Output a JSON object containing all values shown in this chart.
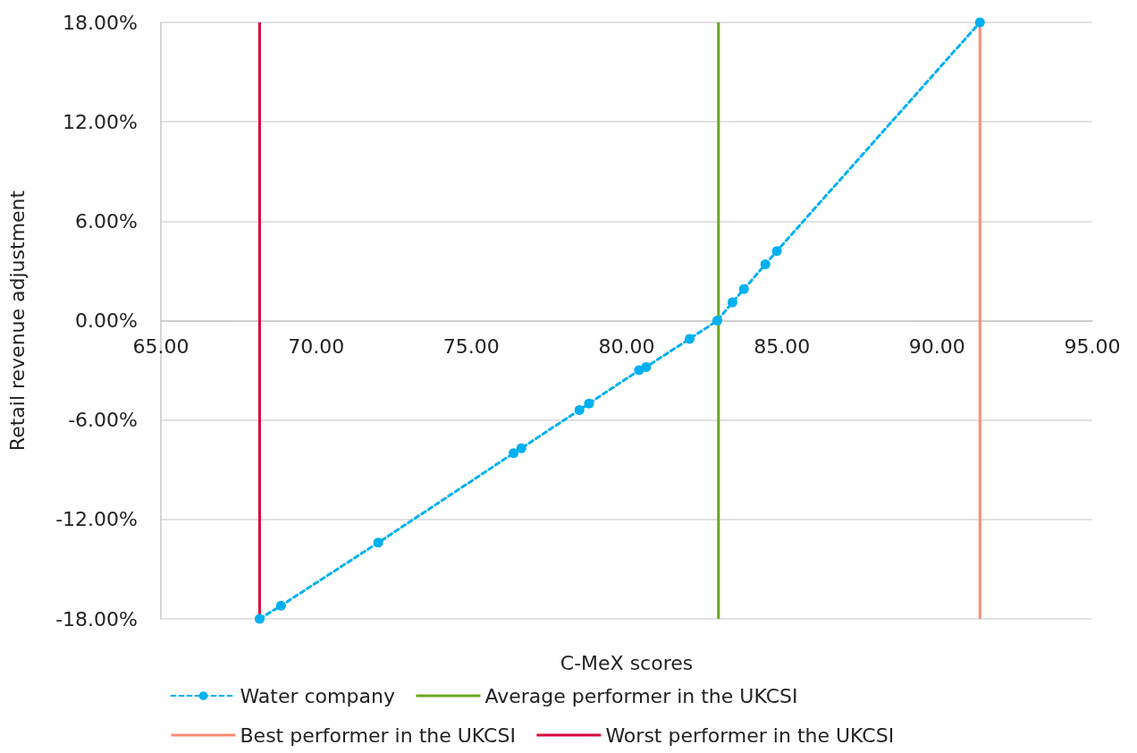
{
  "chart_data": {
    "type": "line",
    "xlabel": "C-MeX scores",
    "ylabel": "Retail revenue adjustment",
    "xlim": [
      65,
      95
    ],
    "xticks": [
      {
        "value": 65,
        "label": "65.00"
      },
      {
        "value": 70,
        "label": "70.00"
      },
      {
        "value": 75,
        "label": "75.00"
      },
      {
        "value": 80,
        "label": "80.00"
      },
      {
        "value": 85,
        "label": "85.00"
      },
      {
        "value": 90,
        "label": "90.00"
      },
      {
        "value": 95,
        "label": "95.00"
      }
    ],
    "ylim": [
      -18,
      18
    ],
    "yticks": [
      {
        "value": -18,
        "label": "-18.00%"
      },
      {
        "value": -12,
        "label": "-12.00%"
      },
      {
        "value": -6,
        "label": "-6.00%"
      },
      {
        "value": 0,
        "label": "0.00%"
      },
      {
        "value": 6,
        "label": "6.00%"
      },
      {
        "value": 12,
        "label": "12.00%"
      },
      {
        "value": 18,
        "label": "18.00%"
      }
    ],
    "grid": "y",
    "legend": "bottom",
    "marker": "circle",
    "line_style": "dashed",
    "series": [
      {
        "name": "Water company",
        "color": "#00b0f0",
        "x": [
          68.18,
          68.87,
          72.0,
          76.36,
          76.61,
          78.48,
          78.79,
          80.4,
          80.63,
          82.03,
          82.92,
          83.41,
          83.78,
          84.47,
          84.84,
          91.38
        ],
        "values": [
          -18,
          -17.2,
          -13.4,
          -8.0,
          -7.7,
          -5.4,
          -5.0,
          -3.0,
          -2.8,
          -1.1,
          0.0,
          1.1,
          1.9,
          3.4,
          4.2,
          18
        ]
      }
    ],
    "ref_lines": [
      {
        "axis": "x",
        "value": 82.96,
        "label": "Average performer in the UKCSI",
        "color": "#6aa61e"
      },
      {
        "axis": "x",
        "value": 91.38,
        "label": "Best performer in the UKCSI",
        "color": "#ff8b73"
      },
      {
        "axis": "x",
        "value": 68.18,
        "label": "Worst performer in the UKCSI",
        "color": "#d7063b"
      }
    ]
  }
}
